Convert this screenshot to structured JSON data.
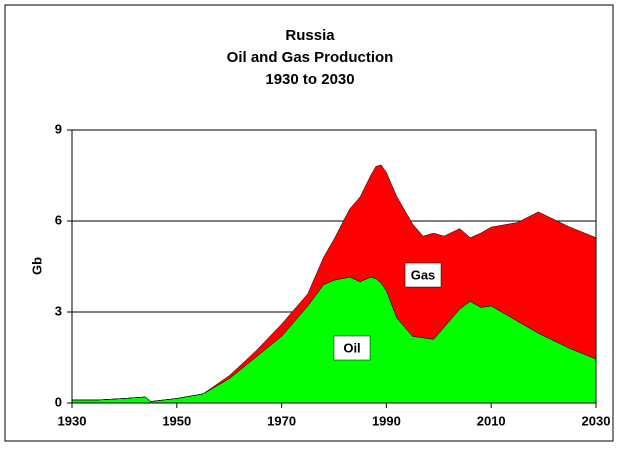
{
  "chart_data": {
    "type": "stacked-area",
    "title": [
      "Russia",
      "Oil and Gas Production",
      "1930 to 2030"
    ],
    "y_label": "Gb",
    "x": [
      1930,
      1935,
      1940,
      1944,
      1945,
      1950,
      1955,
      1960,
      1965,
      1970,
      1975,
      1978,
      1980,
      1983,
      1985,
      1987,
      1988,
      1989,
      1990,
      1992,
      1995,
      1997,
      1999,
      2001,
      2004,
      2006,
      2008,
      2010,
      2015,
      2019,
      2025,
      2030
    ],
    "series": [
      {
        "name": "Oil",
        "color": "#00ff00",
        "values": [
          0.1,
          0.1,
          0.15,
          0.2,
          0.05,
          0.15,
          0.3,
          0.8,
          1.5,
          2.2,
          3.2,
          3.9,
          4.05,
          4.15,
          4.0,
          4.15,
          4.1,
          3.95,
          3.7,
          2.8,
          2.2,
          2.15,
          2.1,
          2.5,
          3.1,
          3.35,
          3.15,
          3.2,
          2.7,
          2.3,
          1.8,
          1.45
        ]
      },
      {
        "name": "Gas",
        "color": "#ff0000",
        "values": [
          0,
          0,
          0,
          0,
          0,
          0,
          0,
          0.1,
          0.2,
          0.4,
          0.4,
          0.9,
          1.35,
          2.25,
          2.8,
          3.35,
          3.7,
          3.9,
          3.9,
          4.0,
          3.7,
          3.35,
          3.5,
          3.0,
          2.65,
          2.1,
          2.45,
          2.6,
          3.25,
          4.0,
          4.0,
          4.0
        ]
      }
    ],
    "xlim": [
      1930,
      2030
    ],
    "xticks": [
      1930,
      1950,
      1970,
      1990,
      2010,
      2030
    ],
    "ylim": [
      0,
      9
    ],
    "yticks": [
      0,
      3,
      6,
      9
    ],
    "grid": true
  }
}
